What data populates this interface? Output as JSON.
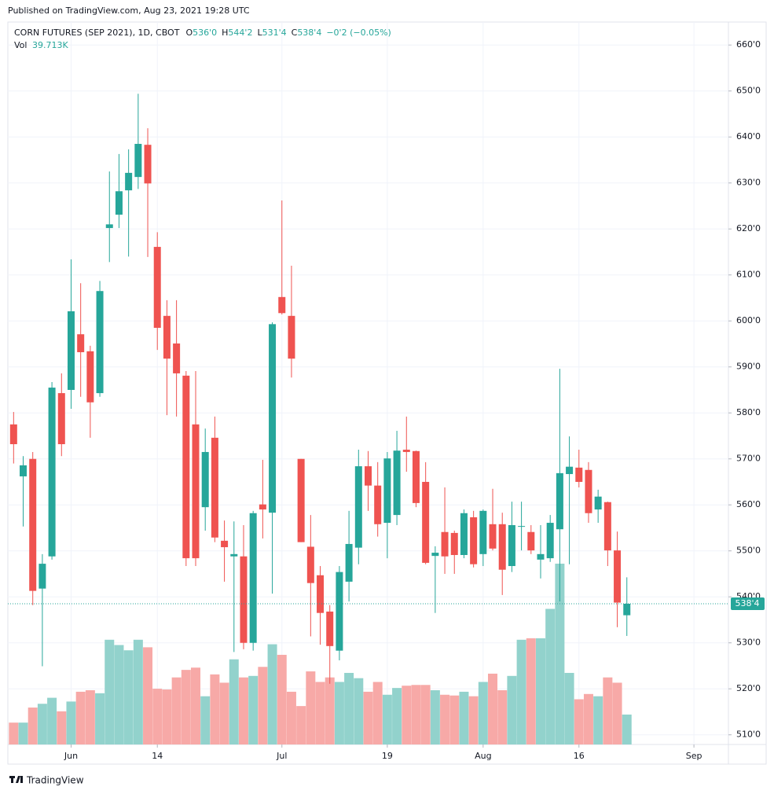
{
  "published": "Published on TradingView.com, Aug 23, 2021 19:28 UTC",
  "footer": "TradingView",
  "chart_data": {
    "type": "candlestick",
    "title": "CORN FUTURES (SEP 2021), 1D, CBOT",
    "ohlc_letters": [
      "O",
      "H",
      "L",
      "C"
    ],
    "last_labels": {
      "open": "536'0",
      "high": "544'2",
      "low": "531'4",
      "close": "538'4",
      "change": "−0'2 (−0.05%)"
    },
    "volume_name": "Vol",
    "volume_label": "39.713K",
    "up_color": "#26a69a",
    "down_color": "#ef5350",
    "up_volume_color": "#92d2cc",
    "down_volume_color": "#f7a9a7",
    "grid": true,
    "xlim": [
      -0.6,
      74.6
    ],
    "xticks": [
      {
        "value": 6,
        "label": "Jun"
      },
      {
        "value": 15,
        "label": "14"
      },
      {
        "value": 28,
        "label": "Jul"
      },
      {
        "value": 39,
        "label": "19"
      },
      {
        "value": 49,
        "label": "Aug"
      },
      {
        "value": 59,
        "label": "16"
      },
      {
        "value": 71,
        "label": "Sep"
      }
    ],
    "ylim": [
      507.9,
      665
    ],
    "yticks": [
      {
        "value": 510,
        "label": "510'0"
      },
      {
        "value": 520,
        "label": "520'0"
      },
      {
        "value": 530,
        "label": "530'0"
      },
      {
        "value": 540,
        "label": "540'0"
      },
      {
        "value": 550,
        "label": "550'0"
      },
      {
        "value": 560,
        "label": "560'0"
      },
      {
        "value": 570,
        "label": "570'0"
      },
      {
        "value": 580,
        "label": "580'0"
      },
      {
        "value": 590,
        "label": "590'0"
      },
      {
        "value": 600,
        "label": "600'0"
      },
      {
        "value": 610,
        "label": "610'0"
      },
      {
        "value": 620,
        "label": "620'0"
      },
      {
        "value": 630,
        "label": "630'0"
      },
      {
        "value": 640,
        "label": "640'0"
      },
      {
        "value": 650,
        "label": "650'0"
      },
      {
        "value": 660,
        "label": "660'0"
      }
    ],
    "open": [
      577.5,
      566.2,
      570.0,
      541.8,
      548.8,
      584.3,
      585.0,
      597.1,
      593.4,
      584.3,
      620.2,
      623.1,
      628.4,
      631.3,
      638.3,
      616.1,
      601.1,
      595.1,
      588.1,
      577.5,
      559.5,
      574.6,
      552.2,
      548.8,
      548.8,
      530.0,
      560.1,
      558.3,
      605.2,
      601.1,
      570.0,
      550.9,
      544.7,
      536.8,
      528.3,
      543.3,
      550.7,
      568.4,
      564.2,
      556.1,
      557.8,
      572.0,
      571.7,
      565.0,
      548.9,
      554.1,
      553.9,
      549.1,
      557.3,
      549.3,
      555.8,
      555.8,
      546.7,
      555.3,
      554.1,
      548.1,
      548.4,
      554.7,
      566.7,
      568.1,
      567.6,
      559.0,
      560.6,
      550.1,
      536.0
    ],
    "high": [
      580.2,
      570.6,
      571.5,
      549.3,
      586.7,
      588.6,
      613.4,
      608.2,
      594.6,
      608.7,
      632.5,
      636.3,
      637.3,
      649.4,
      641.9,
      619.3,
      604.5,
      604.5,
      589.1,
      589.1,
      576.6,
      579.2,
      556.6,
      556.4,
      555.6,
      558.7,
      569.8,
      599.7,
      626.2,
      612.0,
      570.0,
      557.8,
      546.7,
      538.2,
      546.7,
      558.7,
      572.0,
      571.7,
      569.3,
      571.5,
      576.1,
      579.2,
      571.8,
      569.3,
      551.0,
      563.8,
      554.4,
      559.0,
      558.7,
      559.0,
      563.5,
      558.3,
      560.7,
      560.7,
      555.6,
      555.6,
      557.8,
      589.6,
      574.9,
      572.0,
      569.3,
      563.3,
      560.7,
      554.2,
      544.25
    ],
    "low": [
      569.0,
      555.3,
      538.2,
      524.9,
      548.1,
      570.6,
      580.9,
      583.5,
      574.6,
      583.5,
      612.8,
      620.2,
      614.0,
      628.7,
      613.9,
      593.7,
      579.5,
      579.2,
      546.7,
      546.7,
      554.4,
      551.9,
      543.3,
      528.0,
      528.6,
      528.3,
      552.7,
      540.7,
      601.4,
      587.7,
      551.9,
      531.4,
      529.6,
      521.1,
      526.2,
      539.0,
      547.1,
      558.7,
      553.1,
      548.4,
      555.6,
      567.2,
      559.5,
      547.1,
      536.5,
      545.0,
      545.0,
      548.4,
      546.4,
      546.7,
      550.1,
      540.4,
      545.4,
      550.1,
      549.3,
      544.0,
      547.6,
      539.0,
      547.1,
      563.8,
      556.1,
      556.1,
      546.7,
      533.4,
      531.5
    ],
    "close": [
      573.2,
      568.6,
      541.3,
      547.2,
      585.5,
      573.2,
      602.1,
      593.2,
      582.3,
      606.5,
      621.0,
      628.2,
      632.2,
      638.5,
      629.9,
      598.5,
      591.8,
      588.6,
      548.4,
      548.4,
      571.5,
      552.9,
      550.8,
      549.3,
      530.0,
      558.2,
      559.0,
      599.3,
      601.7,
      591.8,
      551.9,
      543.0,
      536.5,
      529.3,
      545.4,
      551.5,
      568.4,
      564.2,
      555.8,
      570.1,
      571.8,
      571.5,
      560.4,
      547.4,
      549.6,
      548.8,
      549.1,
      558.2,
      547.1,
      558.7,
      550.5,
      545.9,
      555.6,
      555.4,
      550.1,
      549.3,
      556.1,
      566.9,
      568.3,
      565.0,
      558.2,
      561.8,
      550.1,
      538.75,
      538.5
    ],
    "volume": [
      29000,
      29000,
      49000,
      54000,
      62000,
      44000,
      57000,
      70000,
      72000,
      68000,
      139000,
      132000,
      125000,
      139000,
      129000,
      74000,
      73000,
      89000,
      99000,
      102000,
      64000,
      93000,
      82000,
      113000,
      89000,
      91000,
      103000,
      133000,
      119000,
      70000,
      51000,
      97000,
      83000,
      89000,
      83000,
      95000,
      88000,
      70000,
      83000,
      66000,
      75000,
      78000,
      79000,
      79000,
      72000,
      66000,
      65000,
      70000,
      64000,
      83000,
      94000,
      72000,
      91000,
      139000,
      141000,
      141000,
      180000,
      240000,
      95000,
      60000,
      67000,
      64000,
      89000,
      82000,
      39713
    ]
  }
}
